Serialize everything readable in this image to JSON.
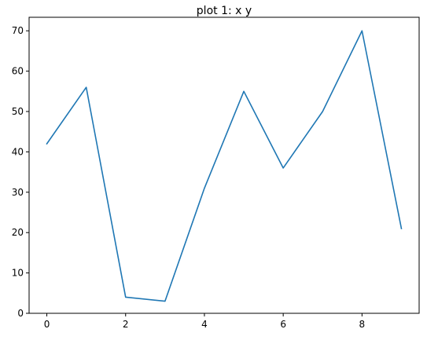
{
  "chart_data": {
    "type": "line",
    "title": "plot 1: x y",
    "xlabel": "",
    "ylabel": "",
    "x": [
      0,
      1,
      2,
      3,
      4,
      5,
      6,
      7,
      8,
      9
    ],
    "series": [
      {
        "values": [
          42,
          56,
          4,
          3,
          31,
          55,
          36,
          50,
          70,
          21
        ],
        "color": "#1f77b4"
      }
    ],
    "xlim": [
      -0.45,
      9.45
    ],
    "ylim": [
      0,
      73.35
    ],
    "xticks": [
      0,
      2,
      4,
      6,
      8
    ],
    "yticks": [
      0,
      10,
      20,
      30,
      40,
      50,
      60,
      70
    ],
    "grid": false,
    "legend": "none"
  }
}
